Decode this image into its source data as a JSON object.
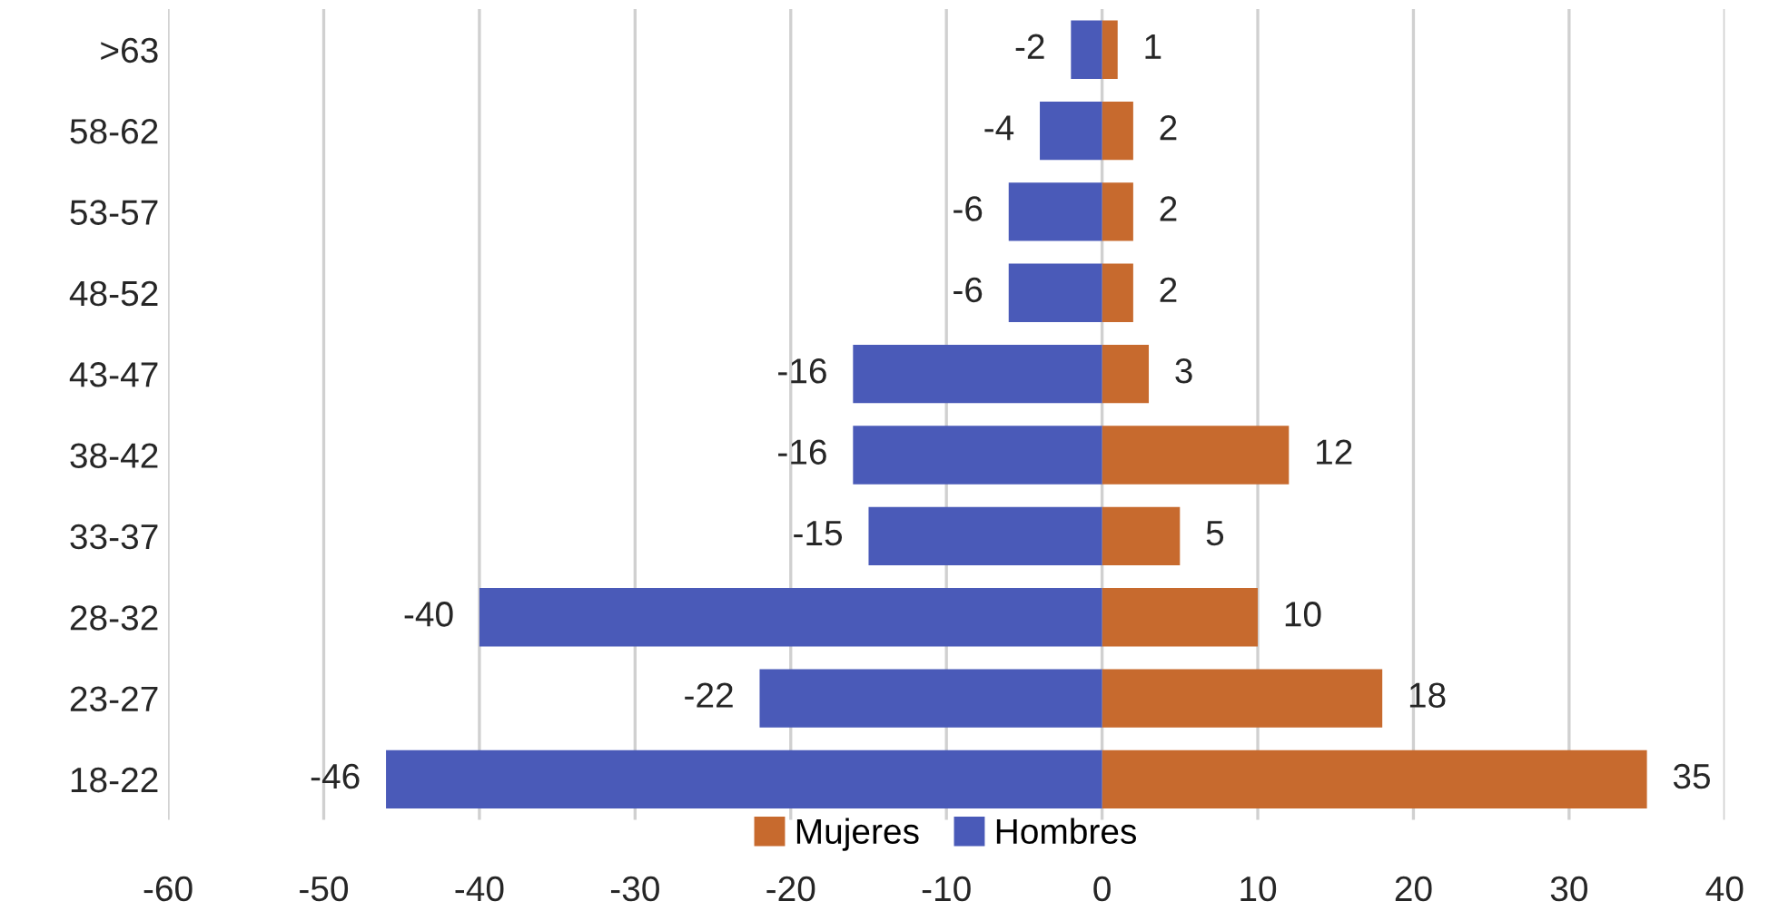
{
  "chart_data": {
    "type": "bar",
    "orientation": "horizontal",
    "stacked": true,
    "categories": [
      ">63",
      "58-62",
      "53-57",
      "48-52",
      "43-47",
      "38-42",
      "33-37",
      "28-32",
      "23-27",
      "18-22"
    ],
    "series": [
      {
        "name": "Mujeres",
        "color": "#c76a2e",
        "values": [
          1,
          2,
          2,
          2,
          3,
          12,
          5,
          10,
          18,
          35
        ]
      },
      {
        "name": "Hombres",
        "color": "#4a5ab8",
        "values": [
          -2,
          -4,
          -6,
          -6,
          -16,
          -16,
          -15,
          -40,
          -22,
          -46
        ]
      }
    ],
    "xlim": [
      -60,
      40
    ],
    "xticks": [
      -60,
      -50,
      -40,
      -30,
      -20,
      -10,
      0,
      10,
      20,
      30,
      40
    ],
    "grid": "x",
    "legend": "bottom",
    "data_labels": true
  }
}
